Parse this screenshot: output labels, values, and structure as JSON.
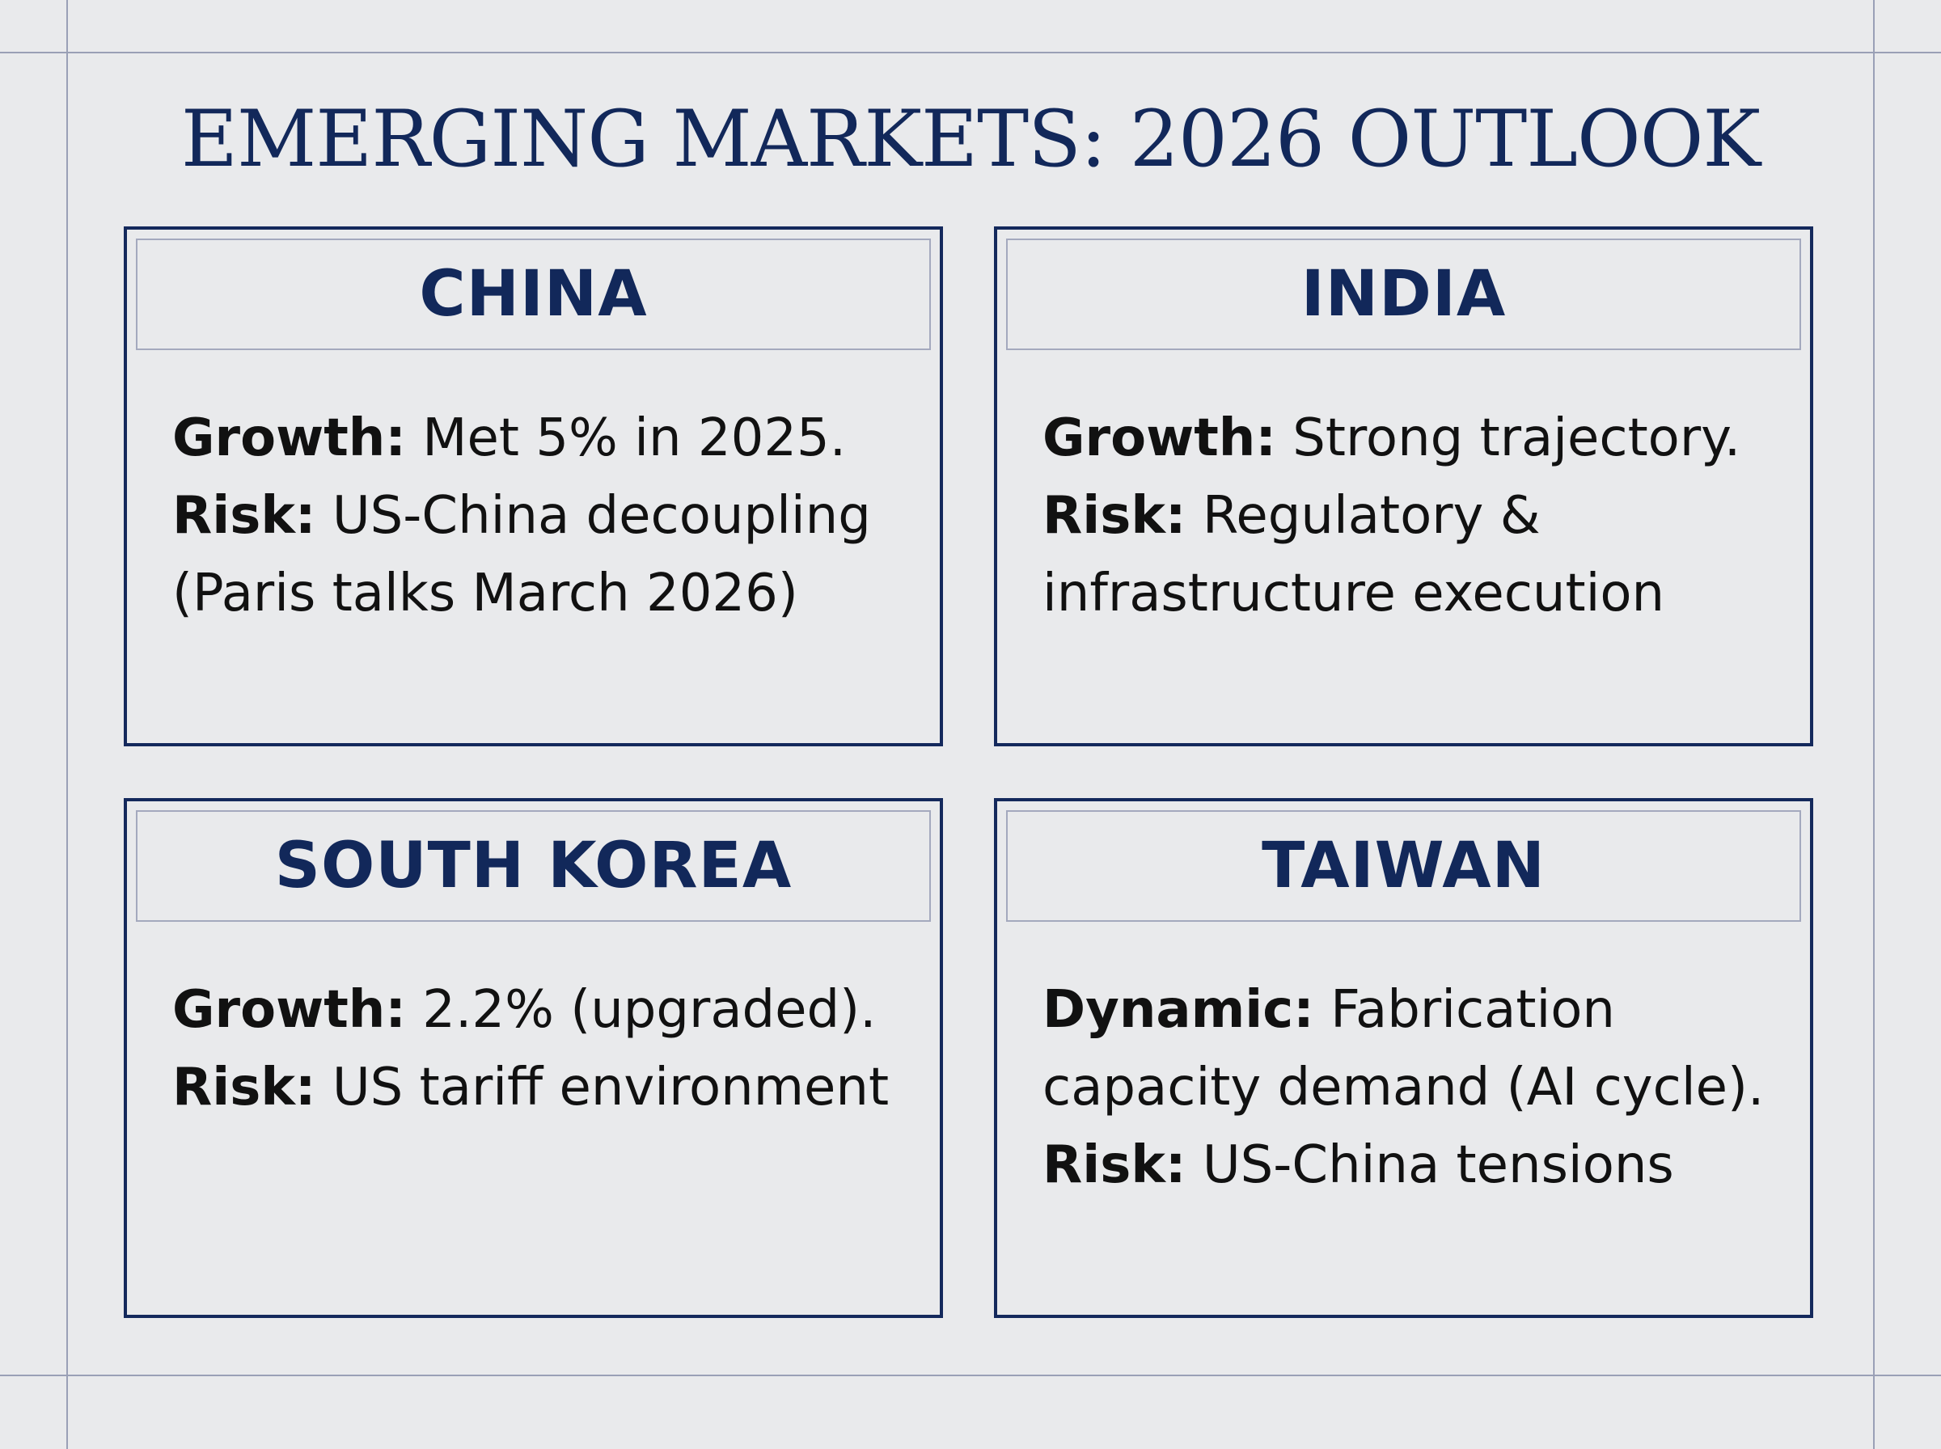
{
  "title": "EMERGING MARKETS: 2026 OUTLOOK",
  "colors": {
    "accent_navy": "#12285a",
    "background": "#e9eaec",
    "guide_lines": "#9aa0b6"
  },
  "cards": [
    {
      "title": "CHINA",
      "lines": [
        {
          "label": "Growth:",
          "text": " Met 5% in 2025."
        },
        {
          "label": "Risk:",
          "text": " US-China decoupling"
        },
        {
          "label": "",
          "text": "(Paris talks March 2026)"
        }
      ]
    },
    {
      "title": "INDIA",
      "lines": [
        {
          "label": "Growth:",
          "text": " Strong trajectory."
        },
        {
          "label": "Risk:",
          "text": " Regulatory &"
        },
        {
          "label": "",
          "text": "infrastructure execution"
        }
      ]
    },
    {
      "title": "SOUTH KOREA",
      "lines": [
        {
          "label": "Growth:",
          "text": " 2.2% (upgraded)."
        },
        {
          "label": "Risk:",
          "text": " US tariff environment"
        },
        {
          "label": "",
          "text": ""
        }
      ]
    },
    {
      "title": "TAIWAN",
      "lines": [
        {
          "label": "Dynamic:",
          "text": " Fabrication"
        },
        {
          "label": "",
          "text": "capacity demand (AI cycle)."
        },
        {
          "label": "Risk:",
          "text": " US-China tensions"
        }
      ]
    }
  ]
}
